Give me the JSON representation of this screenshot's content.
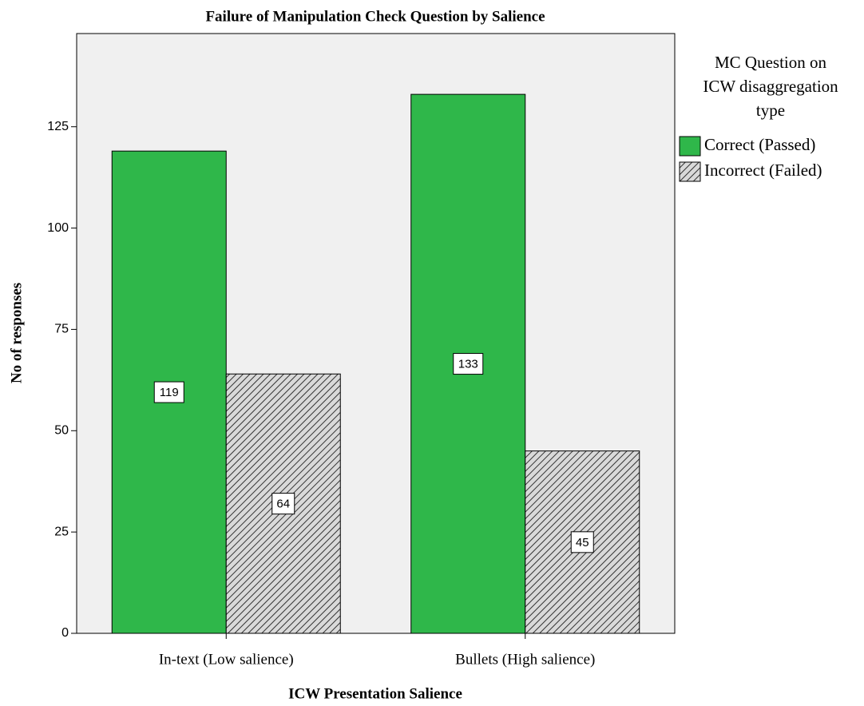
{
  "chart_data": {
    "type": "bar",
    "title": "Failure of Manipulation Check Question by Salience",
    "x_label": "ICW Presentation Salience",
    "y_label": "No of responses",
    "legend_title": [
      "MC Question on",
      "ICW disaggregation",
      "type"
    ],
    "categories": [
      "In-text (Low salience)",
      "Bullets (High salience)"
    ],
    "series": [
      {
        "name": "Correct (Passed)",
        "color": "#2fb74a",
        "hatch": false,
        "values": [
          119,
          133
        ]
      },
      {
        "name": "Incorrect (Failed)",
        "color": "#d9d9d9",
        "hatch": true,
        "values": [
          64,
          45
        ]
      }
    ],
    "ylim": [
      0,
      148
    ],
    "yticks": [
      0,
      25,
      50,
      75,
      100,
      125
    ],
    "legend": "right"
  }
}
